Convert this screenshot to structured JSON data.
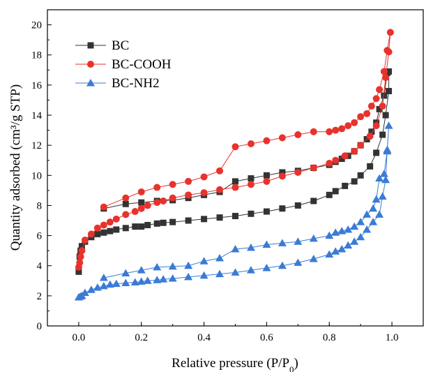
{
  "chart_data": {
    "type": "line",
    "xlabel": "Relative pressure (P/P",
    "xlabel_sub": "0",
    "xlabel_close": ")",
    "ylabel": "Quantity adsorbed (cm³/g STP)",
    "xlim": [
      -0.1,
      1.1
    ],
    "ylim": [
      0,
      21
    ],
    "xticks": [
      0.0,
      0.2,
      0.4,
      0.6,
      0.8,
      1.0
    ],
    "xtick_labels": [
      "0.0",
      "0.2",
      "0.4",
      "0.6",
      "0.8",
      "1.0"
    ],
    "yticks": [
      0,
      2,
      4,
      6,
      8,
      10,
      12,
      14,
      16,
      18,
      20
    ],
    "ytick_labels": [
      "0",
      "2",
      "4",
      "6",
      "8",
      "10",
      "12",
      "14",
      "16",
      "18",
      "20"
    ],
    "grid": false,
    "legend_position": "top-left",
    "series": [
      {
        "name": "BC",
        "color": "#333333",
        "marker": "square",
        "x": [
          0.0,
          0.003,
          0.006,
          0.01,
          0.02,
          0.04,
          0.06,
          0.08,
          0.1,
          0.12,
          0.15,
          0.18,
          0.2,
          0.22,
          0.25,
          0.27,
          0.3,
          0.35,
          0.4,
          0.45,
          0.5,
          0.55,
          0.6,
          0.65,
          0.7,
          0.75,
          0.8,
          0.82,
          0.85,
          0.88,
          0.9,
          0.93,
          0.95,
          0.97,
          0.98,
          0.99,
          0.99,
          0.985,
          0.975,
          0.96,
          0.95,
          0.935,
          0.92,
          0.9,
          0.88,
          0.86,
          0.84,
          0.82,
          0.8,
          0.75,
          0.7,
          0.65,
          0.6,
          0.55,
          0.5,
          0.45,
          0.4,
          0.35,
          0.3,
          0.25,
          0.2,
          0.15,
          0.08
        ],
        "y": [
          3.6,
          4.6,
          5.0,
          5.3,
          5.6,
          5.9,
          6.1,
          6.2,
          6.3,
          6.4,
          6.5,
          6.6,
          6.6,
          6.7,
          6.8,
          6.85,
          6.9,
          7.0,
          7.1,
          7.2,
          7.3,
          7.45,
          7.6,
          7.8,
          8.0,
          8.3,
          8.7,
          8.95,
          9.3,
          9.6,
          10.0,
          10.6,
          11.5,
          12.7,
          14.0,
          15.6,
          16.9,
          16.8,
          15.3,
          14.4,
          13.5,
          12.9,
          12.4,
          12.0,
          11.6,
          11.3,
          11.1,
          10.9,
          10.7,
          10.5,
          10.3,
          10.2,
          10.0,
          9.8,
          9.6,
          8.9,
          8.7,
          8.5,
          8.35,
          8.3,
          8.2,
          8.1,
          7.8
        ]
      },
      {
        "name": "BC-COOH",
        "color": "#e8322c",
        "marker": "circle",
        "x": [
          0.0,
          0.003,
          0.006,
          0.01,
          0.02,
          0.04,
          0.06,
          0.08,
          0.1,
          0.12,
          0.15,
          0.18,
          0.2,
          0.22,
          0.25,
          0.27,
          0.3,
          0.35,
          0.4,
          0.45,
          0.5,
          0.55,
          0.6,
          0.65,
          0.7,
          0.75,
          0.8,
          0.82,
          0.85,
          0.88,
          0.9,
          0.93,
          0.95,
          0.97,
          0.98,
          0.99,
          0.995,
          0.985,
          0.975,
          0.96,
          0.95,
          0.935,
          0.92,
          0.9,
          0.88,
          0.86,
          0.84,
          0.82,
          0.8,
          0.75,
          0.7,
          0.65,
          0.6,
          0.55,
          0.5,
          0.45,
          0.4,
          0.35,
          0.3,
          0.25,
          0.2,
          0.15,
          0.08
        ],
        "y": [
          3.9,
          4.2,
          4.6,
          5.0,
          5.7,
          6.1,
          6.5,
          6.7,
          6.9,
          7.1,
          7.4,
          7.6,
          7.8,
          8.0,
          8.2,
          8.3,
          8.5,
          8.7,
          8.85,
          9.05,
          9.2,
          9.4,
          9.6,
          9.95,
          10.2,
          10.5,
          10.8,
          11.0,
          11.3,
          11.6,
          12.0,
          12.6,
          13.3,
          14.6,
          16.5,
          18.2,
          19.5,
          18.3,
          16.9,
          15.7,
          15.1,
          14.6,
          14.1,
          13.9,
          13.5,
          13.3,
          13.1,
          13.0,
          12.9,
          12.9,
          12.7,
          12.5,
          12.3,
          12.1,
          11.9,
          10.3,
          9.9,
          9.6,
          9.4,
          9.2,
          8.9,
          8.5,
          7.9
        ]
      },
      {
        "name": "BC-NH2",
        "color": "#3a7bd5",
        "marker": "triangle",
        "x": [
          0.0,
          0.005,
          0.01,
          0.02,
          0.04,
          0.06,
          0.08,
          0.1,
          0.12,
          0.15,
          0.18,
          0.2,
          0.22,
          0.25,
          0.27,
          0.3,
          0.35,
          0.4,
          0.45,
          0.5,
          0.55,
          0.6,
          0.65,
          0.7,
          0.75,
          0.8,
          0.82,
          0.84,
          0.86,
          0.88,
          0.9,
          0.92,
          0.94,
          0.96,
          0.97,
          0.98,
          0.985,
          0.99,
          0.985,
          0.975,
          0.96,
          0.95,
          0.94,
          0.92,
          0.9,
          0.88,
          0.86,
          0.84,
          0.82,
          0.8,
          0.75,
          0.7,
          0.65,
          0.6,
          0.55,
          0.5,
          0.45,
          0.4,
          0.35,
          0.3,
          0.25,
          0.2,
          0.15,
          0.08
        ],
        "y": [
          1.9,
          1.95,
          2.0,
          2.2,
          2.4,
          2.55,
          2.65,
          2.75,
          2.8,
          2.85,
          2.9,
          2.95,
          3.0,
          3.05,
          3.1,
          3.15,
          3.25,
          3.35,
          3.45,
          3.55,
          3.7,
          3.85,
          4.0,
          4.2,
          4.45,
          4.75,
          4.95,
          5.1,
          5.35,
          5.6,
          5.9,
          6.4,
          6.9,
          7.4,
          8.6,
          9.7,
          11.7,
          13.3,
          11.6,
          10.1,
          9.8,
          8.4,
          7.8,
          7.4,
          6.9,
          6.6,
          6.4,
          6.3,
          6.2,
          6.0,
          5.8,
          5.6,
          5.5,
          5.4,
          5.2,
          5.1,
          4.5,
          4.3,
          4.0,
          3.95,
          3.9,
          3.7,
          3.5,
          3.2
        ]
      }
    ]
  }
}
